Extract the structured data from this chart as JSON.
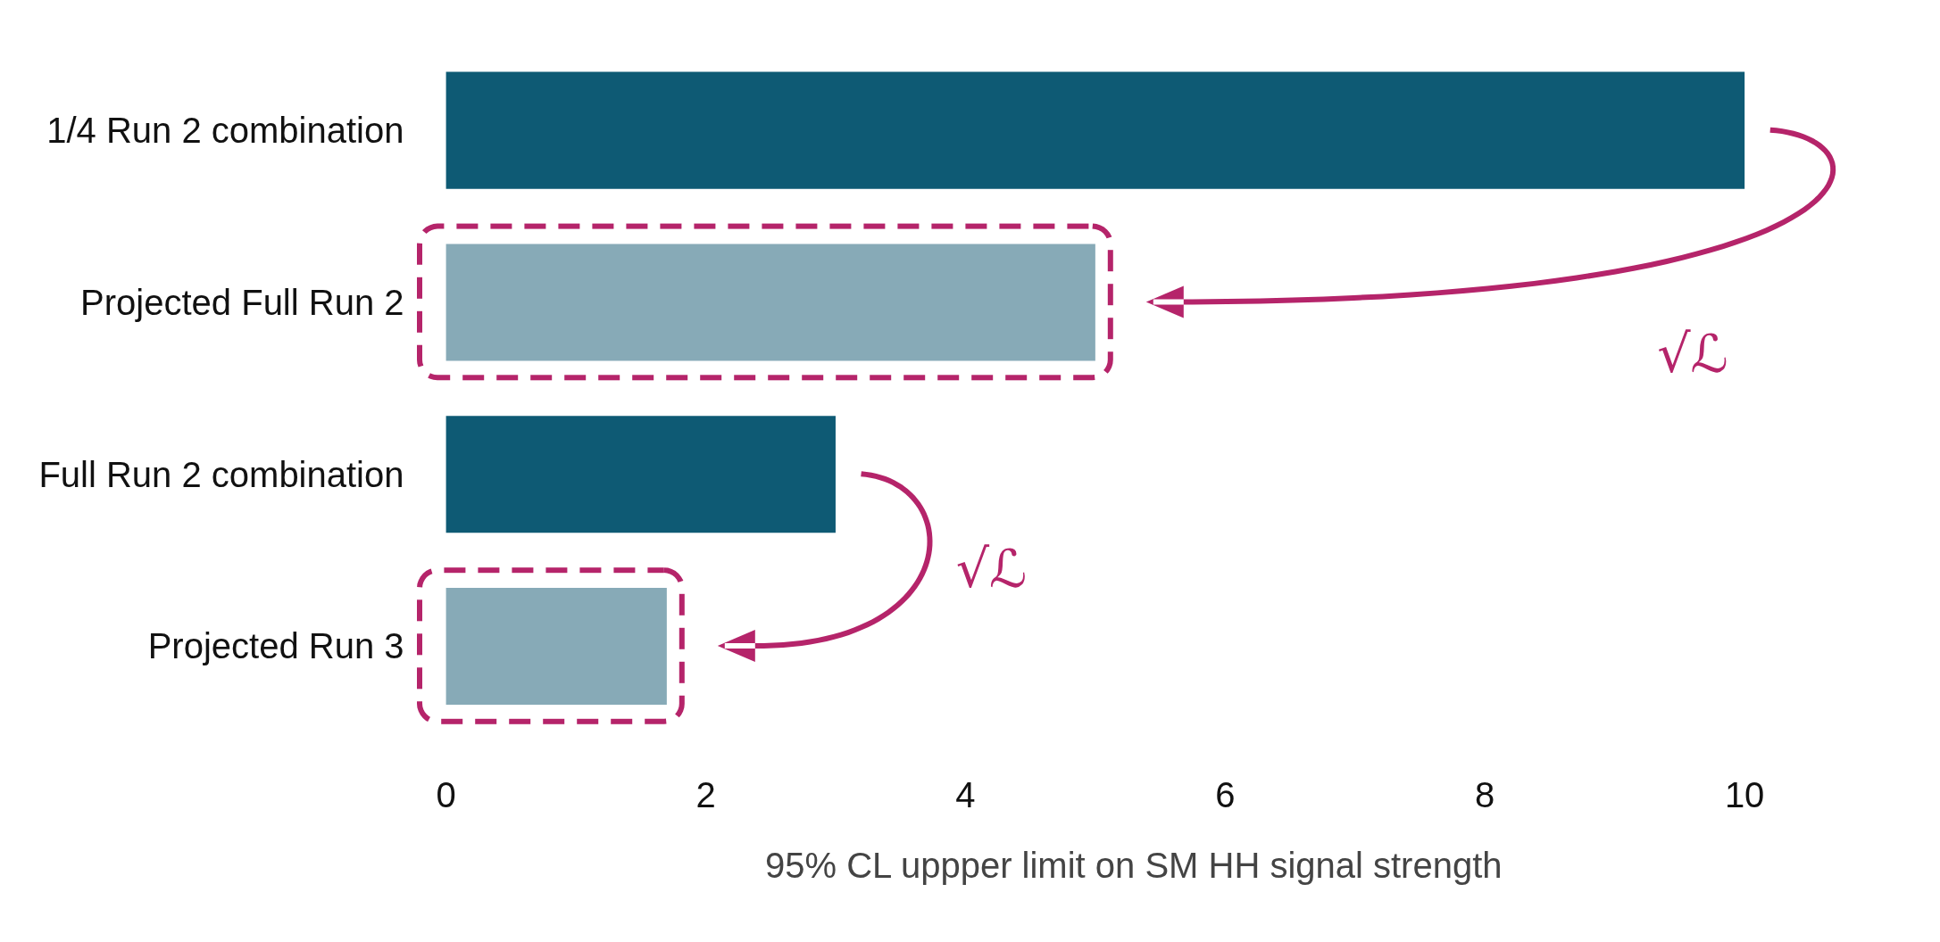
{
  "chart_data": {
    "type": "bar",
    "orientation": "horizontal",
    "categories": [
      "1/4 Run 2 combination",
      "Projected Full Run 2",
      "Full Run 2 combination",
      "Projected Run 3"
    ],
    "values": [
      10,
      5.0,
      3.0,
      1.7
    ],
    "colors": [
      "#0e5a74",
      "#87aab7",
      "#0e5a74",
      "#87aab7"
    ],
    "xlabel": "95% CL uppper limit on SM HH signal strength",
    "xlim": [
      0,
      10
    ],
    "xticks": [
      0,
      2,
      4,
      6,
      8,
      10
    ],
    "grid": false,
    "annotations": [
      "√ℒ",
      "√ℒ"
    ]
  }
}
